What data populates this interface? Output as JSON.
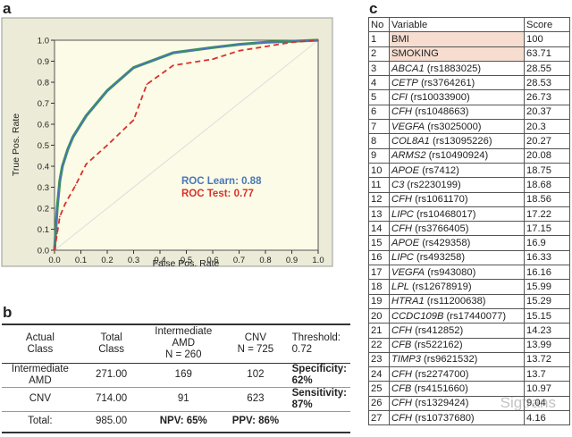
{
  "panels": {
    "a": "a",
    "b": "b",
    "c": "c"
  },
  "chart_data": {
    "type": "line",
    "xlabel": "False Pos. Rate",
    "ylabel": "True Pos. Rate",
    "xlim": [
      0,
      1
    ],
    "ylim": [
      0,
      1
    ],
    "xticks": [
      "0.0",
      "0.1",
      "0.2",
      "0.3",
      "0.4",
      "0.5",
      "0.6",
      "0.7",
      "0.8",
      "0.9",
      "1.0"
    ],
    "yticks": [
      "0.0",
      "0.1",
      "0.2",
      "0.3",
      "0.4",
      "0.5",
      "0.6",
      "0.7",
      "0.8",
      "0.9",
      "1.0"
    ],
    "legend_placement": "lower-right",
    "series": [
      {
        "name": "ROC Learn: 0.88",
        "color": "#4a76b8",
        "style": "solid",
        "x": [
          0,
          0.01,
          0.02,
          0.03,
          0.05,
          0.07,
          0.12,
          0.2,
          0.3,
          0.45,
          0.6,
          0.7,
          0.8,
          0.9,
          1.0
        ],
        "y": [
          0,
          0.2,
          0.33,
          0.4,
          0.48,
          0.54,
          0.64,
          0.76,
          0.87,
          0.94,
          0.965,
          0.98,
          0.99,
          0.995,
          1.0
        ]
      },
      {
        "name": "ROC Test: 0.77",
        "color": "#d9312b",
        "style": "dashed",
        "x": [
          0,
          0.01,
          0.02,
          0.04,
          0.08,
          0.12,
          0.2,
          0.3,
          0.35,
          0.45,
          0.6,
          0.7,
          0.8,
          0.9,
          1.0
        ],
        "y": [
          0,
          0.08,
          0.16,
          0.22,
          0.31,
          0.41,
          0.5,
          0.62,
          0.79,
          0.88,
          0.91,
          0.95,
          0.97,
          0.99,
          1.0
        ]
      }
    ],
    "reference_line": {
      "x": [
        0,
        1
      ],
      "y": [
        0,
        1
      ],
      "color": "#dddddd"
    },
    "learn_curve_overlay_color": "#3a9a3a",
    "plot_background": "#fbfbe7",
    "outer_background": "#ebebd7"
  },
  "table_b": {
    "headers": [
      "Actual\nClass",
      "Total\nClass",
      "Intermediate\nAMD\nN = 260",
      "CNV\nN = 725",
      "Threshold: 0.72"
    ],
    "rows": [
      {
        "actual": "Intermediate\nAMD",
        "total": "271.00",
        "intermediate": "169",
        "cnv": "102",
        "metric": "Specificity: 62%"
      },
      {
        "actual": "CNV",
        "total": "714.00",
        "intermediate": "91",
        "cnv": "623",
        "metric": "Sensitivity: 87%"
      }
    ],
    "total_row": {
      "actual": "Total:",
      "total": "985.00",
      "intermediate": "NPV: 65%",
      "cnv": "PPV: 86%",
      "metric": ""
    }
  },
  "table_c": {
    "headers": [
      "No",
      "Variable",
      "Score"
    ],
    "rows": [
      {
        "no": "1",
        "gene": "",
        "var": "BMI",
        "score": "100",
        "highlight": true
      },
      {
        "no": "2",
        "gene": "",
        "var": "SMOKING",
        "score": "63.71",
        "highlight": true
      },
      {
        "no": "3",
        "gene": "ABCA1",
        "var": " (rs1883025)",
        "score": "28.55"
      },
      {
        "no": "4",
        "gene": "CETP",
        "var": " (rs3764261)",
        "score": "28.53"
      },
      {
        "no": "5",
        "gene": "CFI",
        "var": " (rs10033900)",
        "score": "26.73"
      },
      {
        "no": "6",
        "gene": "CFH",
        "var": " (rs1048663)",
        "score": "20.37"
      },
      {
        "no": "7",
        "gene": "VEGFA",
        "var": " (rs3025000)",
        "score": "20.3"
      },
      {
        "no": "8",
        "gene": "COL8A1",
        "var": " (rs13095226)",
        "score": "20.27"
      },
      {
        "no": "9",
        "gene": "ARMS2",
        "var": " (rs10490924)",
        "score": "20.08"
      },
      {
        "no": "10",
        "gene": "APOE",
        "var": " (rs7412)",
        "score": "18.75"
      },
      {
        "no": "11",
        "gene": "C3",
        "var": " (rs2230199)",
        "score": "18.68"
      },
      {
        "no": "12",
        "gene": "CFH",
        "var": " (rs1061170)",
        "score": "18.56"
      },
      {
        "no": "13",
        "gene": "LIPC",
        "var": " (rs10468017)",
        "score": "17.22"
      },
      {
        "no": "14",
        "gene": "CFH",
        "var": " (rs3766405)",
        "score": "17.15"
      },
      {
        "no": "15",
        "gene": "APOE",
        "var": " (rs429358)",
        "score": "16.9"
      },
      {
        "no": "16",
        "gene": "LIPC",
        "var": " (rs493258)",
        "score": "16.33"
      },
      {
        "no": "17",
        "gene": "VEGFA",
        "var": " (rs943080)",
        "score": "16.16"
      },
      {
        "no": "18",
        "gene": "LPL",
        "var": " (rs12678919)",
        "score": "15.99"
      },
      {
        "no": "19",
        "gene": "HTRA1",
        "var": " (rs11200638)",
        "score": "15.29"
      },
      {
        "no": "20",
        "gene": "CCDC109B",
        "var": " (rs17440077)",
        "score": "15.15"
      },
      {
        "no": "21",
        "gene": "CFH",
        "var": " (rs412852)",
        "score": "14.23"
      },
      {
        "no": "22",
        "gene": "CFB",
        "var": " (rs522162)",
        "score": "13.99"
      },
      {
        "no": "23",
        "gene": "TIMP3",
        "var": " (rs9621532)",
        "score": "13.72"
      },
      {
        "no": "24",
        "gene": "CFH",
        "var": " (rs2274700)",
        "score": "13.7"
      },
      {
        "no": "25",
        "gene": "CFB",
        "var": " (rs4151660)",
        "score": "10.97"
      },
      {
        "no": "26",
        "gene": "CFH",
        "var": " (rs1329424)",
        "score": "9.04"
      },
      {
        "no": "27",
        "gene": "CFH",
        "var": " (rs10737680)",
        "score": "4.16"
      }
    ]
  },
  "watermark": "Sigtrans"
}
